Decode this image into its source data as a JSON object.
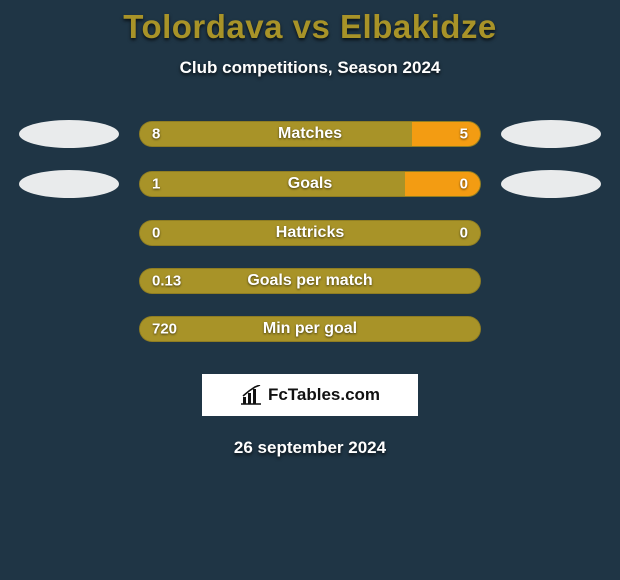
{
  "colors": {
    "background": "#1f3545",
    "title": "#a89328",
    "olive": "#a89328",
    "orange": "#f39c12",
    "ellipse_light": "#e9ebec",
    "brand_bg": "#ffffff",
    "text": "#ffffff"
  },
  "header": {
    "title": "Tolordava vs Elbakidze",
    "subtitle": "Club competitions, Season 2024"
  },
  "stats": [
    {
      "label": "Matches",
      "left_value": "8",
      "right_value": "5",
      "left_pct": 80,
      "left_color": "#a89328",
      "right_color": "#f39c12",
      "left_ellipse": true,
      "right_ellipse": true
    },
    {
      "label": "Goals",
      "left_value": "1",
      "right_value": "0",
      "left_pct": 78,
      "left_color": "#a89328",
      "right_color": "#f39c12",
      "left_ellipse": true,
      "right_ellipse": true
    },
    {
      "label": "Hattricks",
      "left_value": "0",
      "right_value": "0",
      "left_pct": 100,
      "left_color": "#a89328",
      "right_color": "#f39c12",
      "left_ellipse": false,
      "right_ellipse": false
    },
    {
      "label": "Goals per match",
      "left_value": "0.13",
      "right_value": "",
      "left_pct": 100,
      "left_color": "#a89328",
      "right_color": "#f39c12",
      "left_ellipse": false,
      "right_ellipse": false
    },
    {
      "label": "Min per goal",
      "left_value": "720",
      "right_value": "",
      "left_pct": 100,
      "left_color": "#a89328",
      "right_color": "#f39c12",
      "left_ellipse": false,
      "right_ellipse": false
    }
  ],
  "brand": {
    "text": "FcTables.com",
    "icon_color": "#111111"
  },
  "footer": {
    "date": "26 september 2024"
  }
}
